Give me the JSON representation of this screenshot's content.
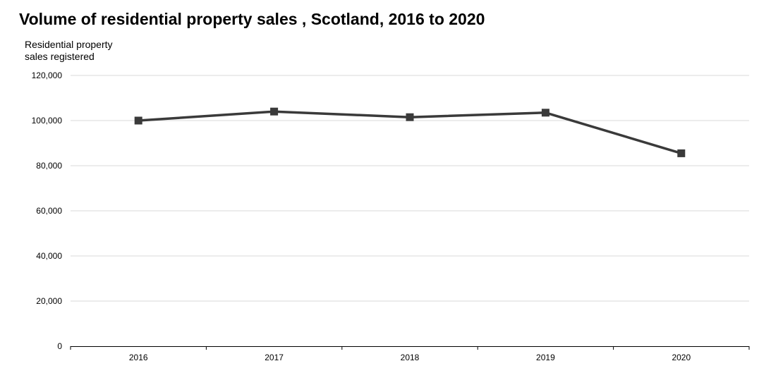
{
  "chart_data": {
    "type": "line",
    "title": "Volume of residential property sales , Scotland, 2016 to 2020",
    "ylabel": "Residential property sales registered",
    "xlabel": "",
    "categories": [
      "2016",
      "2017",
      "2018",
      "2019",
      "2020"
    ],
    "values": [
      100000,
      104000,
      101500,
      103500,
      85500
    ],
    "ylim": [
      0,
      120000
    ],
    "yticks": [
      0,
      20000,
      40000,
      60000,
      80000,
      100000,
      120000
    ],
    "ytick_labels": [
      "0",
      "20,000",
      "40,000",
      "60,000",
      "80,000",
      "100,000",
      "120,000"
    ],
    "grid": true,
    "legend": "none",
    "line_color": "#3a3a3a",
    "grid_color": "#d9d9d9",
    "marker": "square"
  }
}
